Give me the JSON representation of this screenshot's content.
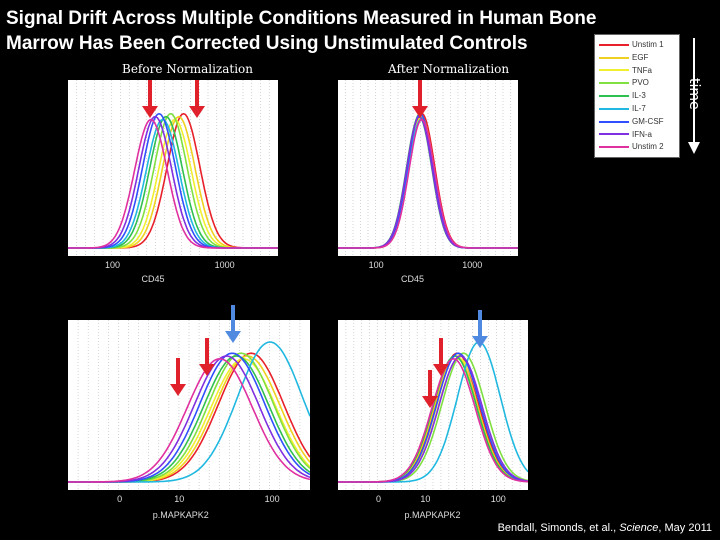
{
  "title": "Signal Drift Across Multiple Conditions Measured in Human Bone Marrow Has Been Corrected Using Unstimulated Controls",
  "panel_labels": {
    "before": "Before Normalization",
    "after": "After Normalization"
  },
  "time_label": "time",
  "credit": {
    "authors": "Bendall, Simonds, et al., ",
    "journal": "Science",
    "date": ", May 2011"
  },
  "legend": [
    {
      "name": "Unstim 1",
      "color": "#e8202a"
    },
    {
      "name": "EGF",
      "color": "#f0d020"
    },
    {
      "name": "TNFa",
      "color": "#f0f030"
    },
    {
      "name": "PVO",
      "color": "#80e040"
    },
    {
      "name": "IL-3",
      "color": "#30c050"
    },
    {
      "name": "IL-7",
      "color": "#20b8e0"
    },
    {
      "name": "GM-CSF",
      "color": "#3050ff"
    },
    {
      "name": "IFN-a",
      "color": "#8030e0"
    },
    {
      "name": "Unstim 2",
      "color": "#e030a0"
    }
  ],
  "chart_data": [
    {
      "type": "line",
      "title": "Before Normalization",
      "xlabel": "CD45",
      "xscale": "log",
      "xlim": [
        40,
        3000
      ],
      "xticks": [
        "100",
        "1000"
      ],
      "series_peaks": [
        430,
        390,
        360,
        330,
        300,
        280,
        260,
        240,
        220
      ],
      "series_width": 0.22
    },
    {
      "type": "line",
      "title": "After Normalization",
      "xlabel": "CD45",
      "xscale": "log",
      "xlim": [
        40,
        3000
      ],
      "xticks": [
        "100",
        "1000"
      ],
      "series_peaks": [
        300,
        295,
        290,
        285,
        280,
        292,
        288,
        282,
        298
      ],
      "series_width": 0.2
    },
    {
      "type": "line",
      "title": "",
      "xlabel": "p.MAPKAPK2",
      "xscale": "arcsinh",
      "xlim": [
        -8,
        250
      ],
      "xticks": [
        "0",
        "10",
        "100"
      ],
      "series_peaks": [
        60,
        55,
        50,
        47,
        42,
        95,
        38,
        33,
        28
      ],
      "series_width": 0.38
    },
    {
      "type": "line",
      "title": "",
      "xlabel": "p.MAPKAPK2",
      "xscale": "arcsinh",
      "xlim": [
        -8,
        250
      ],
      "xticks": [
        "0",
        "10",
        "100"
      ],
      "series_peaks": [
        28,
        27,
        30,
        34,
        26,
        55,
        29,
        31,
        25
      ],
      "series_width": 0.32
    }
  ]
}
